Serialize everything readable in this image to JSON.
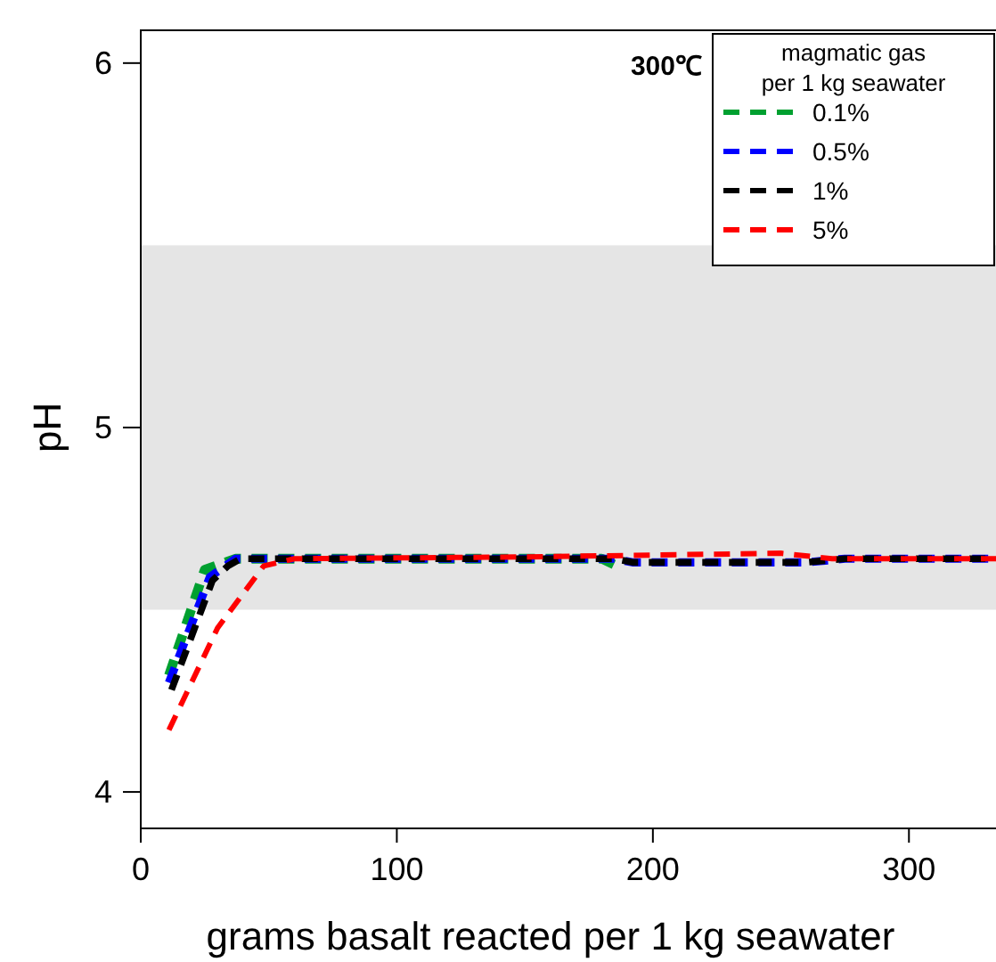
{
  "chart_data": {
    "type": "line",
    "xlabel": "grams basalt reacted per 1 kg seawater",
    "ylabel": "pH",
    "legend_title": "magmatic gas\nper 1 kg seawater",
    "annotations": [
      "300℃"
    ],
    "xlim": [
      0,
      334
    ],
    "ylim": [
      3.9,
      6.09
    ],
    "xticks": [
      0,
      100,
      200,
      300
    ],
    "yticks": [
      4,
      5,
      6
    ],
    "grid": false,
    "legend": "top right",
    "line_style": "dashed",
    "bands": [
      {
        "axis": "y",
        "from": 4.5,
        "to": 5.5,
        "color": "#e5e5e5"
      }
    ],
    "series": [
      {
        "name": "0.1%",
        "color": "#00a030",
        "x": [
          11,
          25,
          37,
          100,
          180,
          186
        ],
        "values": [
          4.32,
          4.61,
          4.64,
          4.64,
          4.64,
          4.62
        ]
      },
      {
        "name": "0.5%",
        "color": "#0000ff",
        "x": [
          11,
          27,
          37,
          100,
          185,
          192,
          260,
          275,
          334
        ],
        "values": [
          4.3,
          4.59,
          4.64,
          4.64,
          4.64,
          4.63,
          4.63,
          4.64,
          4.64
        ]
      },
      {
        "name": "1%",
        "color": "#000000",
        "x": [
          12,
          28,
          34,
          39,
          100,
          185,
          192,
          260,
          275,
          334
        ],
        "values": [
          4.28,
          4.58,
          4.62,
          4.64,
          4.64,
          4.64,
          4.63,
          4.63,
          4.64,
          4.64
        ]
      },
      {
        "name": "5%",
        "color": "#ff0000",
        "x": [
          11,
          30,
          48,
          60,
          150,
          250,
          270,
          334
        ],
        "values": [
          4.17,
          4.45,
          4.62,
          4.64,
          4.645,
          4.655,
          4.64,
          4.64
        ]
      }
    ]
  }
}
